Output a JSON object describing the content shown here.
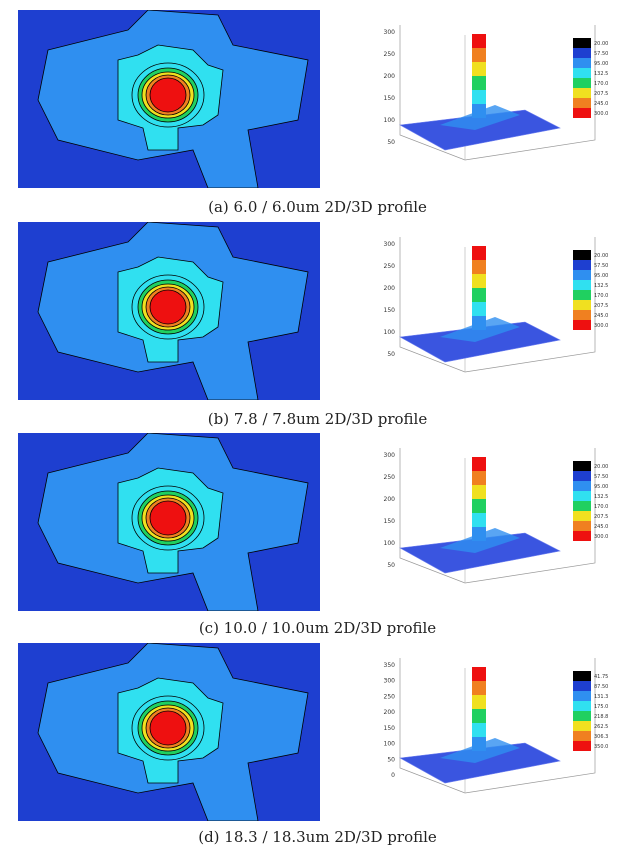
{
  "panels": [
    {
      "caption": "(a) 6.0 / 6.0um 2D/3D profile",
      "z_ticks": [
        "300",
        "250",
        "200",
        "150",
        "100",
        "50"
      ],
      "colorbar": [
        "20.00",
        "57.50",
        "95.00",
        "132.5",
        "170.0",
        "207.5",
        "245.0",
        "300.0"
      ]
    },
    {
      "caption": "(b) 7.8 / 7.8um 2D/3D profile",
      "z_ticks": [
        "300",
        "250",
        "200",
        "150",
        "100",
        "50"
      ],
      "colorbar": [
        "20.00",
        "57.50",
        "95.00",
        "132.5",
        "170.0",
        "207.5",
        "245.0",
        "300.0"
      ]
    },
    {
      "caption": "(c) 10.0 / 10.0um 2D/3D profile",
      "z_ticks": [
        "300",
        "250",
        "200",
        "150",
        "100",
        "50"
      ],
      "colorbar": [
        "20.00",
        "57.50",
        "95.00",
        "132.5",
        "170.0",
        "207.5",
        "245.0",
        "300.0"
      ]
    },
    {
      "caption": "(d) 18.3 / 18.3um 2D/3D profile",
      "z_ticks": [
        "350",
        "300",
        "250",
        "200",
        "150",
        "100",
        "50",
        "0"
      ],
      "colorbar": [
        "41.75",
        "87.50",
        "131.3",
        "175.0",
        "218.8",
        "262.5",
        "306.3",
        "350.0"
      ]
    }
  ]
}
